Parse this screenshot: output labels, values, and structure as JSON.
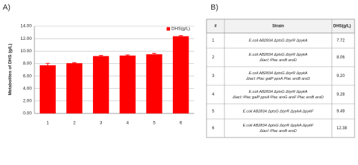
{
  "panel_labels": [
    "A)",
    "B)"
  ],
  "chart_data": {
    "type": "bar",
    "ylabel": "Metabolites of DHS (g/L)",
    "categories": [
      "1",
      "2",
      "3",
      "4",
      "5",
      "6"
    ],
    "series": [
      {
        "name": "DHS(g/L)",
        "color": "#ff0000",
        "values": [
          7.72,
          8.06,
          9.2,
          9.28,
          9.49,
          12.38
        ],
        "errors": [
          0.3,
          0.1,
          0.1,
          0.1,
          0.15,
          0.1
        ]
      }
    ],
    "ylim": [
      0,
      14
    ],
    "yticks": [
      {
        "value": 0,
        "label": "0.00"
      },
      {
        "value": 2,
        "label": "2.00"
      },
      {
        "value": 4,
        "label": "4.00"
      },
      {
        "value": 6,
        "label": "6.00"
      },
      {
        "value": 8,
        "label": "8.00"
      },
      {
        "value": 10,
        "label": "10.00"
      },
      {
        "value": 12,
        "label": "12.00"
      },
      {
        "value": 14,
        "label": "14.00"
      }
    ],
    "grid": true,
    "legend": "upper right"
  },
  "table": {
    "header": [
      "#",
      "Strain",
      "DHS(g/L)"
    ],
    "rows": [
      [
        "1",
        [
          "E.coli AB2834 ΔptsG ΔtyrR ΔpykA"
        ],
        "7.72"
      ],
      [
        "2",
        [
          "E.coli AB2834 ΔptsG ΔtyrR ΔpykA",
          "ΔlacI::Plac aroB aroD"
        ],
        "8.06"
      ],
      [
        "3",
        [
          "E.coli AB2834 ΔptsG ΔtyrR ΔpykA",
          "ΔlacI::Plac galP ppsA Plac aroB aroD"
        ],
        "9.20"
      ],
      [
        "4",
        [
          "E.coli AB2834 ΔptsG ΔtyrR ΔpykA",
          "ΔlacI::Plac galP ppsA Plac aroG aroF Plac aroB aroD"
        ],
        "9.28"
      ],
      [
        "5",
        [
          "E.coli AB2834 ΔptsG ΔtyrR ΔpykA ΔpykF"
        ],
        "9.49"
      ],
      [
        "6",
        [
          "E.coli AB2834 ΔptsG ΔtyrR ΔpykA ΔpykF",
          "ΔlacI::Plac aroB aroD"
        ],
        "12.38"
      ]
    ]
  }
}
